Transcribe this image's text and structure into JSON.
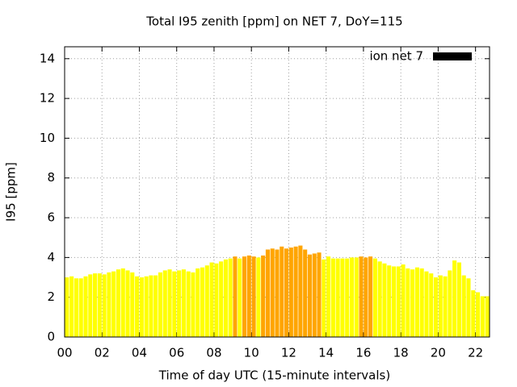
{
  "chart_data": {
    "type": "bar",
    "title": "Total I95 zenith [ppm] on NET 7, DoY=115",
    "x_label": "Time of day UTC (15-minute intervals)",
    "y_label": "I95 [ppm]",
    "xlim": [
      0,
      22.75
    ],
    "ylim": [
      0,
      14.6
    ],
    "xticks": [
      {
        "value": 0,
        "label": "00"
      },
      {
        "value": 2,
        "label": "02"
      },
      {
        "value": 4,
        "label": "04"
      },
      {
        "value": 6,
        "label": "06"
      },
      {
        "value": 8,
        "label": "08"
      },
      {
        "value": 10,
        "label": "10"
      },
      {
        "value": 12,
        "label": "12"
      },
      {
        "value": 14,
        "label": "14"
      },
      {
        "value": 16,
        "label": "16"
      },
      {
        "value": 18,
        "label": "18"
      },
      {
        "value": 20,
        "label": "20"
      },
      {
        "value": 22,
        "label": "22"
      }
    ],
    "yticks": [
      0,
      2,
      4,
      6,
      8,
      10,
      12,
      14
    ],
    "grid": true,
    "legend": "top-right",
    "x": [
      0,
      0.25,
      0.5,
      0.75,
      1,
      1.25,
      1.5,
      1.75,
      2,
      2.25,
      2.5,
      2.75,
      3,
      3.25,
      3.5,
      3.75,
      4,
      4.25,
      4.5,
      4.75,
      5,
      5.25,
      5.5,
      5.75,
      6,
      6.25,
      6.5,
      6.75,
      7,
      7.25,
      7.5,
      7.75,
      8,
      8.25,
      8.5,
      8.75,
      9,
      9.25,
      9.5,
      9.75,
      10,
      10.25,
      10.5,
      10.75,
      11,
      11.25,
      11.5,
      11.75,
      12,
      12.25,
      12.5,
      12.75,
      13,
      13.25,
      13.5,
      13.75,
      14,
      14.25,
      14.5,
      14.75,
      15,
      15.25,
      15.5,
      15.75,
      16,
      16.25,
      16.5,
      16.75,
      17,
      17.25,
      17.5,
      17.75,
      18,
      18.25,
      18.5,
      18.75,
      19,
      19.25,
      19.5,
      19.75,
      20,
      20.25,
      20.5,
      20.75,
      21,
      21.25,
      21.5,
      21.75,
      22,
      22.25,
      22.5
    ],
    "bar_width": 0.25,
    "series": [
      {
        "name": "ion net 7",
        "color": "#000000",
        "values": [
          3.0,
          3.05,
          2.95,
          2.95,
          3.05,
          3.15,
          3.2,
          3.2,
          3.15,
          3.25,
          3.3,
          3.4,
          3.45,
          3.35,
          3.25,
          3.05,
          3.0,
          3.05,
          3.1,
          3.1,
          3.25,
          3.35,
          3.4,
          3.3,
          3.35,
          3.4,
          3.3,
          3.25,
          3.45,
          3.5,
          3.6,
          3.75,
          3.7,
          3.8,
          3.9,
          3.95,
          4.05,
          3.95,
          4.05,
          4.1,
          4.05,
          4.0,
          4.1,
          4.4,
          4.45,
          4.4,
          4.55,
          4.45,
          4.5,
          4.55,
          4.6,
          4.4,
          4.15,
          4.2,
          4.25,
          3.9,
          4.05,
          3.95,
          3.95,
          3.95,
          3.95,
          4.0,
          4.0,
          4.05,
          4.0,
          4.05,
          3.95,
          3.8,
          3.7,
          3.6,
          3.55,
          3.55,
          3.65,
          3.45,
          3.4,
          3.5,
          3.45,
          3.3,
          3.2,
          3.0,
          3.1,
          3.05,
          3.35,
          3.85,
          3.75,
          3.1,
          2.95,
          2.35,
          2.25,
          2.05,
          2.05
        ],
        "colors": [
          "#ffff00",
          "#ffff00",
          "#ffff00",
          "#ffff00",
          "#ffff00",
          "#ffff00",
          "#ffff00",
          "#ffff00",
          "#ffff00",
          "#ffff00",
          "#ffff00",
          "#ffff00",
          "#ffff00",
          "#ffff00",
          "#ffff00",
          "#ffff00",
          "#ffff00",
          "#ffff00",
          "#ffff00",
          "#ffff00",
          "#ffff00",
          "#ffff00",
          "#ffff00",
          "#ffff00",
          "#ffff00",
          "#ffff00",
          "#ffff00",
          "#ffff00",
          "#ffff00",
          "#ffff00",
          "#ffff00",
          "#ffff00",
          "#ffff00",
          "#ffff00",
          "#ffff00",
          "#ffff00",
          "#ffa500",
          "#ffff00",
          "#ffa500",
          "#ffa500",
          "#ffa500",
          "#ffff00",
          "#ffa500",
          "#ffa500",
          "#ffa500",
          "#ffa500",
          "#ffa500",
          "#ffa500",
          "#ffa500",
          "#ffa500",
          "#ffa500",
          "#ffa500",
          "#ffa500",
          "#ffa500",
          "#ffa500",
          "#ffff00",
          "#ffff00",
          "#ffff00",
          "#ffff00",
          "#ffff00",
          "#ffff00",
          "#ffff00",
          "#ffff00",
          "#ffa500",
          "#ffa500",
          "#ffa500",
          "#ffff00",
          "#ffff00",
          "#ffff00",
          "#ffff00",
          "#ffff00",
          "#ffff00",
          "#ffff00",
          "#ffff00",
          "#ffff00",
          "#ffff00",
          "#ffff00",
          "#ffff00",
          "#ffff00",
          "#ffff00",
          "#ffff00",
          "#ffff00",
          "#ffff00",
          "#ffff00",
          "#ffff00",
          "#ffff00",
          "#ffff00",
          "#ffff00",
          "#ffff00",
          "#ffff00",
          "#ffff00"
        ]
      }
    ]
  }
}
